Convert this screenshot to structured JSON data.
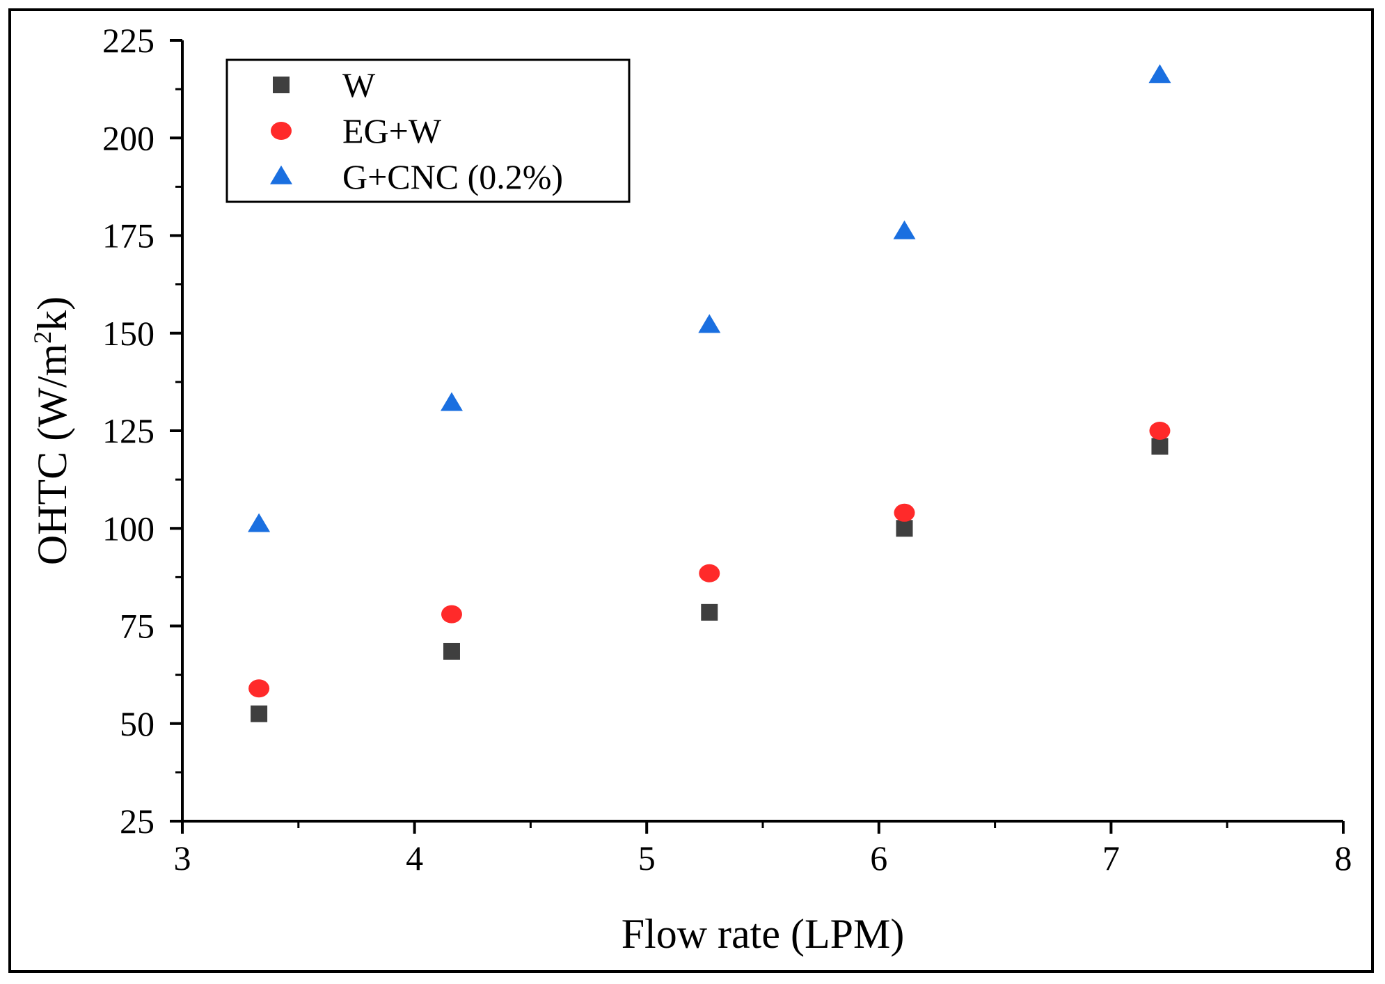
{
  "chart_data": {
    "type": "scatter",
    "xlabel": "Flow rate (LPM)",
    "ylabel": "OHTC (W/m²k)",
    "ylabel_parts": {
      "main": "OHTC (W/m",
      "superscript": "2",
      "tail": "k)"
    },
    "xlim": [
      3,
      8
    ],
    "ylim": [
      25,
      225
    ],
    "xticks": [
      "3",
      "4",
      "5",
      "6",
      "7",
      "8"
    ],
    "yticks": [
      "25",
      "50",
      "75",
      "100",
      "125",
      "150",
      "175",
      "200",
      "225"
    ],
    "legend_position": "top-left",
    "series": [
      {
        "name": "W",
        "marker": "square",
        "color": "#3f3f3f",
        "x": [
          3.33,
          4.16,
          5.27,
          6.11,
          7.21
        ],
        "y": [
          52.5,
          68.5,
          78.5,
          100,
          121
        ]
      },
      {
        "name": "EG+W",
        "marker": "circle",
        "color": "#ff2a2a",
        "x": [
          3.33,
          4.16,
          5.27,
          6.11,
          7.21
        ],
        "y": [
          59,
          78,
          88.5,
          104,
          125
        ]
      },
      {
        "name": "G+CNC (0.2%)",
        "marker": "triangle",
        "color": "#1a6fe0",
        "x": [
          3.33,
          4.16,
          5.27,
          6.11,
          7.21
        ],
        "y": [
          101,
          132,
          152,
          176,
          216
        ]
      }
    ]
  }
}
